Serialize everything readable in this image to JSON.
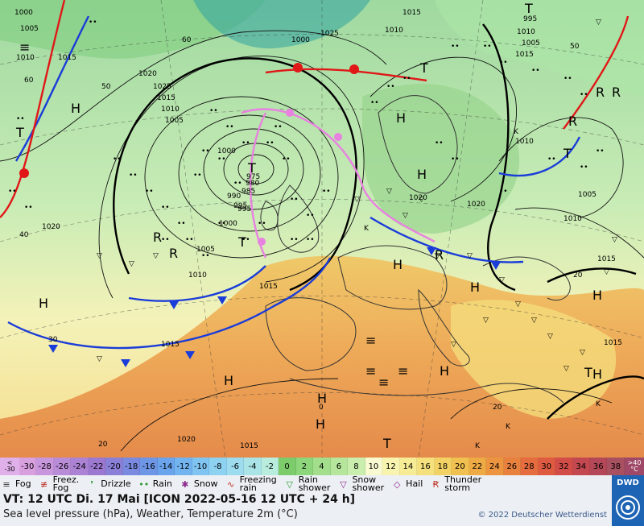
{
  "header": {
    "valid_time": "VT: 12 UTC Di.   17 Mai [ICON 2022-05-16  12 UTC + 24 h]",
    "subtitle": "Sea level pressure (hPa), Weather, Temperature 2m (°C)",
    "copyright": "© 2022 Deutscher Wetterdienst",
    "logo_text": "DWD"
  },
  "colorbar": {
    "low_end": "<\n-30",
    "high_end": ">40\n°C",
    "steps": [
      {
        "label": "-30",
        "color": "#d9a0e0"
      },
      {
        "label": "-28",
        "color": "#c896dc"
      },
      {
        "label": "-26",
        "color": "#b98cd8"
      },
      {
        "label": "-24",
        "color": "#ab82d4"
      },
      {
        "label": "-22",
        "color": "#9c78d0"
      },
      {
        "label": "-20",
        "color": "#8a80d8"
      },
      {
        "label": "-18",
        "color": "#7a8ae0"
      },
      {
        "label": "-16",
        "color": "#6e96e6"
      },
      {
        "label": "-14",
        "color": "#6aa4ec"
      },
      {
        "label": "-12",
        "color": "#72b4f0"
      },
      {
        "label": "-10",
        "color": "#80c4f2"
      },
      {
        "label": "-8",
        "color": "#8ed2f2"
      },
      {
        "label": "-6",
        "color": "#9cdcee"
      },
      {
        "label": "-4",
        "color": "#aae4e6"
      },
      {
        "label": "-2",
        "color": "#b8ecdc"
      },
      {
        "label": "0",
        "color": "#7ccc6c"
      },
      {
        "label": "2",
        "color": "#8ed67c"
      },
      {
        "label": "4",
        "color": "#a2de8c"
      },
      {
        "label": "6",
        "color": "#b6e69c"
      },
      {
        "label": "8",
        "color": "#caeeae"
      },
      {
        "label": "10",
        "color": "#fafad2"
      },
      {
        "label": "12",
        "color": "#f8f4b0"
      },
      {
        "label": "14",
        "color": "#f6ec96"
      },
      {
        "label": "16",
        "color": "#f4e07c"
      },
      {
        "label": "18",
        "color": "#f2d264"
      },
      {
        "label": "20",
        "color": "#f0c050"
      },
      {
        "label": "22",
        "color": "#eeaa44"
      },
      {
        "label": "24",
        "color": "#ec9440"
      },
      {
        "label": "26",
        "color": "#e8803e"
      },
      {
        "label": "28",
        "color": "#e46c3e"
      },
      {
        "label": "30",
        "color": "#de5a40"
      },
      {
        "label": "32",
        "color": "#d24c48"
      },
      {
        "label": "34",
        "color": "#c44850"
      },
      {
        "label": "36",
        "color": "#b44858"
      },
      {
        "label": "38",
        "color": "#a85060"
      }
    ]
  },
  "legend": [
    {
      "icon": "fog-icon",
      "glyph": "≡",
      "label": "Fog",
      "color": "#333333"
    },
    {
      "icon": "freezing-fog-icon",
      "glyph": "≢",
      "label": "Freez.\nFog",
      "color": "#c0392b"
    },
    {
      "icon": "drizzle-icon",
      "glyph": "❜",
      "label": "Drizzle",
      "color": "#2e9a2e"
    },
    {
      "icon": "rain-icon",
      "glyph": "••",
      "label": "Rain",
      "color": "#2e9a2e"
    },
    {
      "icon": "snow-icon",
      "glyph": "✱",
      "label": "Snow",
      "color": "#8e2a8e"
    },
    {
      "icon": "freezing-rain-icon",
      "glyph": "∿",
      "label": "Freezing\nrain",
      "color": "#c0392b"
    },
    {
      "icon": "rain-shower-icon",
      "glyph": "▽",
      "label": "Rain\nshower",
      "color": "#2e9a2e"
    },
    {
      "icon": "snow-shower-icon",
      "glyph": "▽",
      "label": "Snow\nshower",
      "color": "#8e2a8e"
    },
    {
      "icon": "hail-icon",
      "glyph": "◇",
      "label": "Hail",
      "color": "#8e2a8e"
    },
    {
      "icon": "thunderstorm-icon",
      "glyph": "Ꞧ",
      "label": "Thunder\nstorm",
      "color": "#c0392b"
    }
  ],
  "pressure_labels": [
    "1000",
    "1005",
    "1010",
    "1015",
    "1020",
    "1025",
    "1015",
    "1010",
    "1005",
    "1000",
    "995",
    "990",
    "985",
    "980",
    "975",
    "1015",
    "1020",
    "1010",
    "1005",
    "1000",
    "995",
    "1010",
    "1015",
    "1020",
    "1025",
    "1015",
    "1010",
    "1020",
    "1015",
    "1005",
    "1010",
    "1000",
    "995",
    "1005",
    "1010",
    "1015",
    "1015",
    "1020",
    "1015",
    "1020"
  ],
  "pressure_centers": {
    "high": "H",
    "low": "T",
    "low_secondary": "K"
  },
  "lat_labels": [
    "60",
    "50",
    "40",
    "30",
    "20",
    "0",
    "20",
    "50",
    "60",
    "20"
  ],
  "weather_symbols": {
    "rain": "•",
    "shower": "▽",
    "fog": "≡",
    "thunder": "R"
  }
}
